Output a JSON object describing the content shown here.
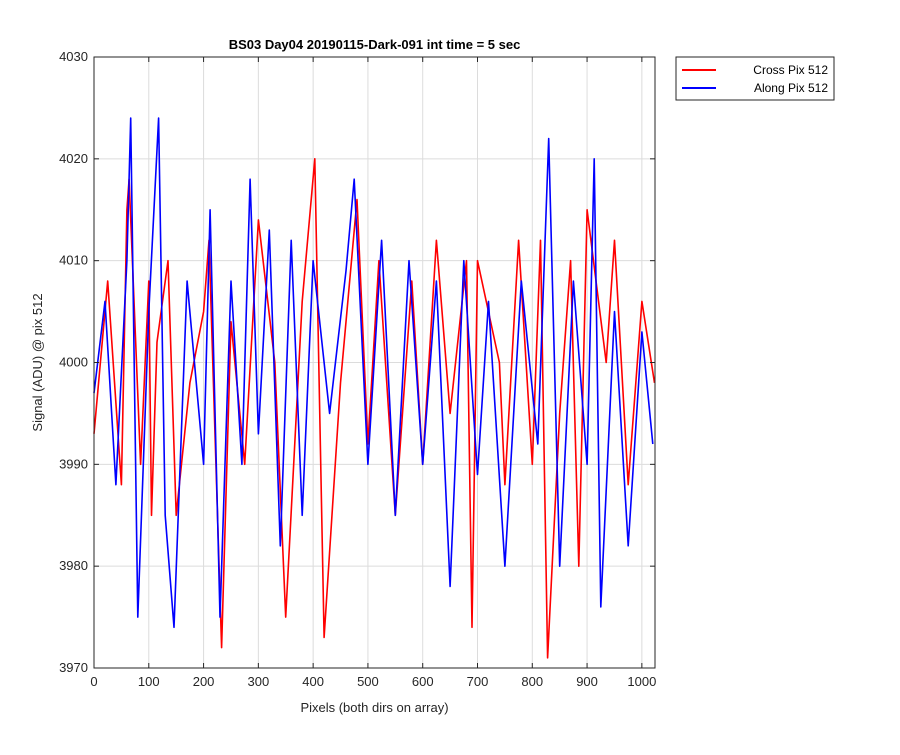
{
  "chart_data": {
    "type": "line",
    "title": "BS03 Day04 20190115-Dark-091 int time = 5 sec",
    "xlabel": "Pixels (both dirs on array)",
    "ylabel": "Signal (ADU) @ pix 512",
    "xlim": [
      0,
      1024
    ],
    "ylim": [
      3970,
      4030
    ],
    "xticks": [
      0,
      100,
      200,
      300,
      400,
      500,
      600,
      700,
      800,
      900,
      1000
    ],
    "yticks": [
      3970,
      3980,
      3990,
      4000,
      4010,
      4020,
      4030
    ],
    "grid": true,
    "legend_position": "outside-top-right",
    "series": [
      {
        "name": "Cross Pix 512",
        "color": "#ff0000",
        "x": [
          0,
          25,
          50,
          60,
          64,
          85,
          100,
          105,
          115,
          135,
          150,
          175,
          200,
          210,
          233,
          250,
          275,
          300,
          330,
          350,
          380,
          403,
          420,
          450,
          480,
          500,
          520,
          550,
          580,
          600,
          625,
          650,
          680,
          690,
          700,
          740,
          750,
          775,
          800,
          815,
          828,
          850,
          870,
          885,
          900,
          935,
          950,
          975,
          1000,
          1023
        ],
        "y": [
          3993,
          4008,
          3988,
          4015,
          4018,
          3990,
          4008,
          3985,
          4002,
          4010,
          3985,
          3998,
          4005,
          4012,
          3972,
          4004,
          3990,
          4014,
          4000,
          3975,
          4006,
          4020,
          3973,
          3998,
          4016,
          3992,
          4010,
          3985,
          4008,
          3990,
          4012,
          3995,
          4010,
          3974,
          4010,
          4000,
          3988,
          4012,
          3990,
          4012,
          3971,
          3995,
          4010,
          3980,
          4015,
          4000,
          4012,
          3988,
          4006,
          3998
        ]
      },
      {
        "name": "Along Pix 512",
        "color": "#0000ff",
        "x": [
          0,
          20,
          40,
          60,
          67,
          80,
          100,
          118,
          130,
          146,
          170,
          200,
          212,
          230,
          250,
          270,
          285,
          300,
          320,
          340,
          360,
          380,
          400,
          430,
          460,
          475,
          500,
          525,
          550,
          575,
          600,
          625,
          650,
          675,
          700,
          720,
          750,
          780,
          810,
          830,
          850,
          875,
          900,
          913,
          925,
          950,
          975,
          1000,
          1020
        ],
        "y": [
          3997,
          4006,
          3988,
          4010,
          4024,
          3975,
          4005,
          4024,
          3985,
          3974,
          4008,
          3990,
          4015,
          3975,
          4008,
          3990,
          4018,
          3993,
          4013,
          3982,
          4012,
          3985,
          4010,
          3995,
          4009,
          4018,
          3990,
          4012,
          3985,
          4010,
          3990,
          4008,
          3978,
          4010,
          3989,
          4006,
          3980,
          4008,
          3992,
          4022,
          3980,
          4008,
          3990,
          4020,
          3976,
          4005,
          3982,
          4003,
          3992
        ]
      }
    ]
  }
}
